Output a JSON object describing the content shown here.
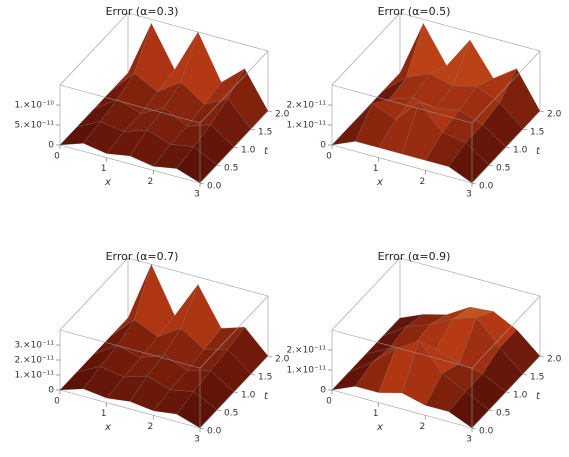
{
  "chart_data": [
    {
      "type": "surface3d",
      "title": "Error (α=0.3)",
      "xlabel": "x",
      "ylabel": "t",
      "x": [
        0,
        0.5,
        1,
        1.5,
        2,
        2.5,
        3
      ],
      "t": [
        0,
        0.5,
        1,
        1.5,
        2
      ],
      "z": [
        [
          0,
          2e-11,
          1e-11,
          2e-11,
          1e-11,
          2e-11,
          0
        ],
        [
          0,
          3e-11,
          2e-11,
          4e-11,
          2e-11,
          3e-11,
          0
        ],
        [
          0,
          4e-11,
          2e-11,
          5e-11,
          2e-11,
          4e-11,
          0
        ],
        [
          0,
          6e-11,
          3e-11,
          7e-11,
          3e-11,
          6e-11,
          0
        ],
        [
          0,
          1.4e-10,
          4e-11,
          1.5e-10,
          4e-11,
          9e-11,
          0
        ]
      ],
      "xlim": [
        0,
        3
      ],
      "ylim": [
        0,
        2
      ],
      "zlim": [
        0,
        1.5e-10
      ],
      "xticks": [
        0,
        1,
        2,
        3
      ],
      "yticks": [
        {
          "value": 0,
          "label": "0.0"
        },
        0.5,
        {
          "value": 1,
          "label": "1.0"
        },
        1.5,
        {
          "value": 2,
          "label": "2.0"
        }
      ],
      "zticks": [
        0,
        {
          "value": 5e-11,
          "label": "5.×10⁻¹¹"
        },
        {
          "value": 1e-10,
          "label": "1.×10⁻¹⁰"
        }
      ],
      "colormap": [
        "#4a0a05",
        "#b83a14",
        "#f0c050"
      ]
    },
    {
      "type": "surface3d",
      "title": "Error (α=0.5)",
      "xlabel": "x",
      "ylabel": "t",
      "x": [
        0,
        0.5,
        1,
        1.5,
        2,
        2.5,
        3
      ],
      "t": [
        0,
        0.5,
        1,
        1.5,
        2
      ],
      "z": [
        [
          0,
          5e-12,
          5e-12,
          5e-12,
          5e-12,
          5e-12,
          0
        ],
        [
          0,
          1.5e-11,
          1e-11,
          2.2e-11,
          1e-11,
          8e-12,
          0
        ],
        [
          0,
          8e-12,
          1.2e-11,
          1e-11,
          1.2e-11,
          8e-12,
          0
        ],
        [
          0,
          1e-11,
          1.5e-11,
          1.2e-11,
          1.5e-11,
          1e-11,
          0
        ],
        [
          0,
          2.8e-11,
          1e-11,
          2.6e-11,
          1e-11,
          1.8e-11,
          0
        ]
      ],
      "xlim": [
        0,
        3
      ],
      "ylim": [
        0,
        2
      ],
      "zlim": [
        0,
        3e-11
      ],
      "xticks": [
        0,
        1,
        2,
        3
      ],
      "yticks": [
        {
          "value": 0,
          "label": "0.0"
        },
        0.5,
        {
          "value": 1,
          "label": "1.0"
        },
        1.5,
        {
          "value": 2,
          "label": "2.0"
        }
      ],
      "zticks": [
        0,
        {
          "value": 1e-11,
          "label": "1.×10⁻¹¹"
        },
        {
          "value": 2e-11,
          "label": "2.×10⁻¹¹"
        }
      ],
      "colormap": [
        "#4a0a05",
        "#b83a14",
        "#f0c050"
      ]
    },
    {
      "type": "surface3d",
      "title": "Error (α=0.7)",
      "xlabel": "x",
      "ylabel": "t",
      "x": [
        0,
        0.5,
        1,
        1.5,
        2,
        2.5,
        3
      ],
      "t": [
        0,
        0.5,
        1,
        1.5,
        2
      ],
      "z": [
        [
          0,
          5e-12,
          3e-12,
          5e-12,
          3e-12,
          5e-12,
          0
        ],
        [
          0,
          8e-12,
          5e-12,
          1e-11,
          5e-12,
          8e-12,
          0
        ],
        [
          0,
          1e-11,
          6e-12,
          1.2e-11,
          6e-12,
          1e-11,
          0
        ],
        [
          0,
          1.5e-11,
          8e-12,
          1.8e-11,
          8e-12,
          1.2e-11,
          0
        ],
        [
          0,
          4e-11,
          1e-11,
          3.5e-11,
          1e-11,
          1.5e-11,
          0
        ]
      ],
      "xlim": [
        0,
        3
      ],
      "ylim": [
        0,
        2
      ],
      "zlim": [
        0,
        4e-11
      ],
      "xticks": [
        0,
        1,
        2,
        3
      ],
      "yticks": [
        {
          "value": 0,
          "label": "0.0"
        },
        0.5,
        {
          "value": 1,
          "label": "1.0"
        },
        1.5,
        {
          "value": 2,
          "label": "2.0"
        }
      ],
      "zticks": [
        0,
        {
          "value": 1e-11,
          "label": "1.×10⁻¹¹"
        },
        {
          "value": 2e-11,
          "label": "2.×10⁻¹¹"
        },
        {
          "value": 3e-11,
          "label": "3.×10⁻¹¹"
        }
      ],
      "colormap": [
        "#4a0a05",
        "#b83a14",
        "#f0c050"
      ]
    },
    {
      "type": "surface3d",
      "title": "Error (α=0.9)",
      "xlabel": "x",
      "ylabel": "t",
      "x": [
        0,
        0.5,
        1,
        1.5,
        2,
        2.5,
        3
      ],
      "t": [
        0,
        0.5,
        1,
        1.5,
        2
      ],
      "z": [
        [
          0,
          5e-12,
          5e-12,
          8e-12,
          5e-12,
          5e-12,
          0
        ],
        [
          0,
          8e-12,
          1.8e-11,
          2.5e-11,
          1.2e-11,
          6e-12,
          0
        ],
        [
          0,
          6e-12,
          1e-11,
          1.2e-11,
          8e-12,
          6e-12,
          0
        ],
        [
          0,
          8e-12,
          1.2e-11,
          1.8e-11,
          2.2e-11,
          1e-11,
          0
        ],
        [
          0,
          5e-12,
          8e-12,
          1.5e-11,
          1.6e-11,
          1e-11,
          0
        ]
      ],
      "xlim": [
        0,
        3
      ],
      "ylim": [
        0,
        2
      ],
      "zlim": [
        0,
        3e-11
      ],
      "xticks": [
        0,
        1,
        2,
        3
      ],
      "yticks": [
        {
          "value": 0,
          "label": "0.0"
        },
        0.5,
        {
          "value": 1,
          "label": "1.0"
        },
        1.5,
        {
          "value": 2,
          "label": "2.0"
        }
      ],
      "zticks": [
        0,
        {
          "value": 1e-11,
          "label": "1.×10⁻¹¹"
        },
        {
          "value": 2e-11,
          "label": "2.×10⁻¹¹"
        }
      ],
      "colormap": [
        "#4a0a05",
        "#b83a14",
        "#f0c050"
      ]
    }
  ]
}
